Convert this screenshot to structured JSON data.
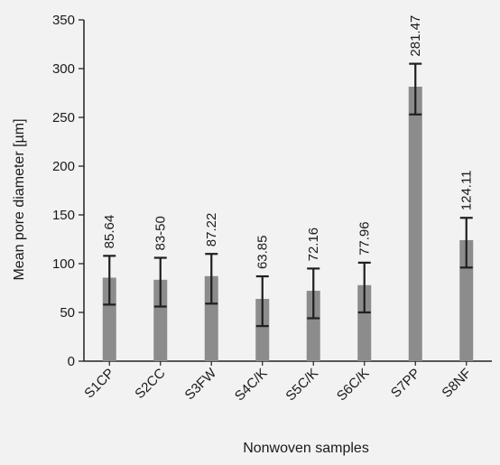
{
  "chart_data": {
    "type": "bar",
    "xlabel": "Nonwoven samples",
    "ylabel": "Mean pore diameter [µm]",
    "ylim": [
      0,
      350
    ],
    "yticks": [
      0,
      50,
      100,
      150,
      200,
      250,
      300,
      350
    ],
    "categories": [
      "S1CP",
      "S2CC",
      "S3FW",
      "S4C/K",
      "S5C/K",
      "S6C/K",
      "S7PP",
      "S8NF"
    ],
    "values": [
      85.64,
      83.5,
      87.22,
      63.85,
      72.16,
      77.96,
      281.47,
      124.11
    ],
    "value_labels": [
      "85.64",
      "83-50",
      "87.22",
      "63.85",
      "72.16",
      "77.96",
      "281.47",
      "124.11"
    ],
    "error_low": [
      58,
      56,
      59,
      36,
      44,
      50,
      253,
      96
    ],
    "error_high": [
      108,
      106,
      110,
      87,
      95,
      101,
      305,
      147
    ],
    "grid": false,
    "bar_color": "#8c8c8c",
    "error_color": "#1f1f1f",
    "background": "#f2f2f2"
  }
}
